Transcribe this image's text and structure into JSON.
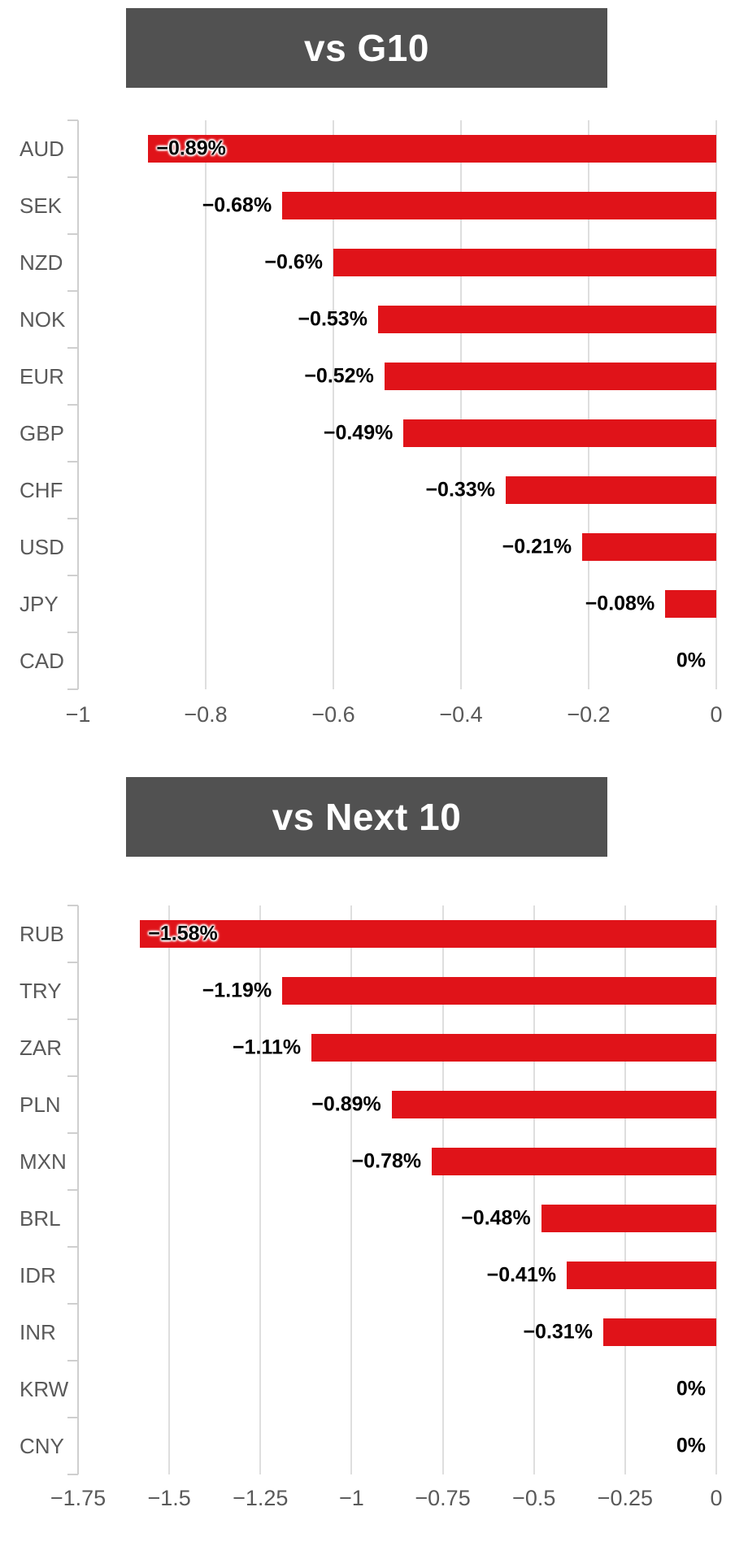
{
  "page": {
    "background": "#ffffff"
  },
  "style": {
    "bar_color": "#e01319",
    "title_background": "#515151",
    "title_text_color": "#ffffff",
    "axis_text_color": "#595959",
    "value_text_color": "#000000",
    "gridline_color": "#dedede"
  },
  "chart_data": [
    {
      "type": "bar",
      "orientation": "horizontal",
      "title": "vs G10",
      "categories": [
        "AUD",
        "SEK",
        "NZD",
        "NOK",
        "EUR",
        "GBP",
        "CHF",
        "USD",
        "JPY",
        "CAD"
      ],
      "values": [
        -0.89,
        -0.68,
        -0.6,
        -0.53,
        -0.52,
        -0.49,
        -0.33,
        -0.21,
        -0.08,
        0
      ],
      "value_labels": [
        "−0.89%",
        "−0.68%",
        "−0.6%",
        "−0.53%",
        "−0.52%",
        "−0.49%",
        "−0.33%",
        "−0.21%",
        "−0.08%",
        "0%"
      ],
      "xlim": [
        -1,
        0
      ],
      "ticks": [
        -1,
        -0.8,
        -0.6,
        -0.4,
        -0.2,
        0
      ],
      "tick_labels": [
        "−1",
        "−0.8",
        "−0.6",
        "−0.4",
        "−0.2",
        "0"
      ],
      "grid": true,
      "legend": false,
      "bar_color": "#e01319",
      "title_bg": "#515151",
      "title_color": "#ffffff"
    },
    {
      "type": "bar",
      "orientation": "horizontal",
      "title": "vs Next 10",
      "categories": [
        "RUB",
        "TRY",
        "ZAR",
        "PLN",
        "MXN",
        "BRL",
        "IDR",
        "INR",
        "KRW",
        "CNY"
      ],
      "values": [
        -1.58,
        -1.19,
        -1.11,
        -0.89,
        -0.78,
        -0.48,
        -0.41,
        -0.31,
        0,
        0
      ],
      "value_labels": [
        "−1.58%",
        "−1.19%",
        "−1.11%",
        "−0.89%",
        "−0.78%",
        "−0.48%",
        "−0.41%",
        "−0.31%",
        "0%",
        "0%"
      ],
      "xlim": [
        -1.75,
        0
      ],
      "ticks": [
        -1.75,
        -1.5,
        -1.25,
        -1,
        -0.75,
        -0.5,
        -0.25,
        0
      ],
      "tick_labels": [
        "−1.75",
        "−1.5",
        "−1.25",
        "−1",
        "−0.75",
        "−0.5",
        "−0.25",
        "0"
      ],
      "grid": true,
      "legend": false,
      "bar_color": "#e01319",
      "title_bg": "#515151",
      "title_color": "#ffffff"
    }
  ]
}
